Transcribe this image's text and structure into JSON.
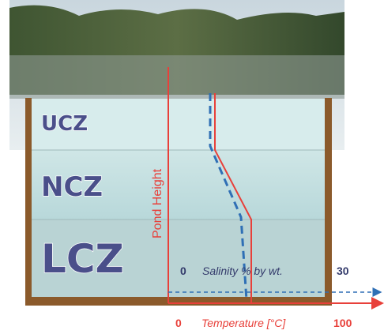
{
  "zones": [
    "UCZ",
    "NCZ",
    "LCZ"
  ],
  "axis_label": "Pond Height",
  "salinity": {
    "min": "0",
    "label": "Salinity % by wt.",
    "max": "30"
  },
  "temperature": {
    "min": "0",
    "label": "Temperature [°C]",
    "max": "100"
  }
}
